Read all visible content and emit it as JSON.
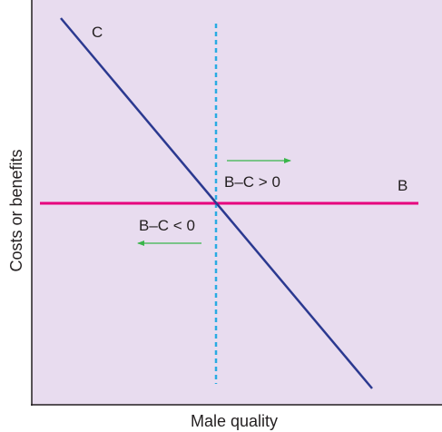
{
  "colors": {
    "plot_background": "#e8dcef",
    "cost_line": "#2b3990",
    "benefit_line": "#e6007e",
    "threshold_line": "#29abe2",
    "arrow": "#39b54a",
    "axis": "#231f20"
  },
  "axes": {
    "x_label": "Male quality",
    "y_label": "Costs or benefits"
  },
  "curves": {
    "cost_label": "C",
    "benefit_label": "B"
  },
  "regions": {
    "right_label": "B–C > 0",
    "left_label": "B–C < 0"
  }
}
